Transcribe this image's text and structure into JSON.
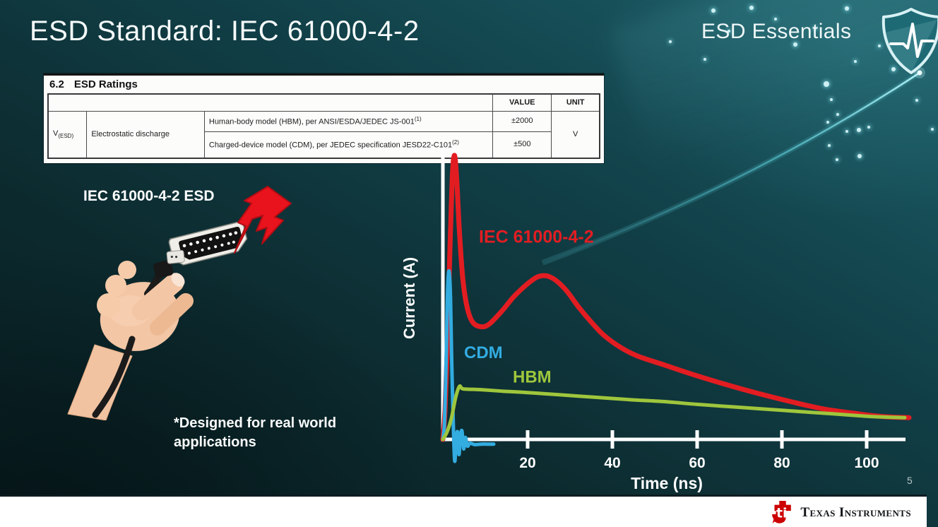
{
  "slide": {
    "title": "ESD Standard: IEC 61000-4-2",
    "program_name": "ESD Essentials",
    "page_number": "5",
    "footnote_line1": "*Designed for real world",
    "footnote_line2": "applications"
  },
  "ratings_table": {
    "section_number": "6.2",
    "section_title": "ESD Ratings",
    "value_header": "VALUE",
    "unit_header": "UNIT",
    "symbol": "V",
    "symbol_subscript": "(ESD)",
    "parameter": "Electrostatic discharge",
    "rows": [
      {
        "description": "Human-body model (HBM), per ANSI/ESDA/JEDEC JS-001",
        "superscript": "(1)",
        "value": "±2000"
      },
      {
        "description": "Charged-device model (CDM), per JEDEC specification JESD22-C101",
        "superscript": "(2)",
        "value": "±500"
      }
    ],
    "unit": "V"
  },
  "illustration": {
    "caption": "IEC 61000-4-2 ESD"
  },
  "chart_data": {
    "type": "line",
    "title": "",
    "xlabel": "Time (ns)",
    "ylabel": "Current (A)",
    "x_ticks": [
      20,
      40,
      60,
      80,
      100
    ],
    "xlim": [
      0,
      111
    ],
    "ylim": [
      -3,
      31
    ],
    "grid": false,
    "legend_position": "inline-labels",
    "series": [
      {
        "name": "IEC 61000-4-2",
        "color": "#e21d22",
        "width": 7,
        "label_size": 25,
        "label_at": [
          8.5,
          20.8
        ],
        "points": [
          [
            0,
            0
          ],
          [
            0.5,
            3
          ],
          [
            1,
            9
          ],
          [
            1.6,
            19
          ],
          [
            2.2,
            27.5
          ],
          [
            2.7,
            30
          ],
          [
            3.2,
            28
          ],
          [
            3.9,
            22
          ],
          [
            4.7,
            17
          ],
          [
            5.7,
            14
          ],
          [
            7,
            12.4
          ],
          [
            9,
            11.9
          ],
          [
            11,
            12.2
          ],
          [
            14,
            13.6
          ],
          [
            17,
            15.2
          ],
          [
            21,
            16.8
          ],
          [
            23.5,
            17.3
          ],
          [
            26,
            17
          ],
          [
            29,
            15.8
          ],
          [
            32,
            14
          ],
          [
            35,
            12.4
          ],
          [
            38,
            11
          ],
          [
            42,
            9.7
          ],
          [
            46,
            8.8
          ],
          [
            52,
            7.9
          ],
          [
            58,
            7
          ],
          [
            66,
            5.9
          ],
          [
            74,
            4.9
          ],
          [
            82,
            4
          ],
          [
            90,
            3.2
          ],
          [
            98,
            2.7
          ],
          [
            104,
            2.4
          ],
          [
            110,
            2.3
          ]
        ]
      },
      {
        "name": "CDM",
        "color": "#33ace0",
        "width": 5,
        "label_size": 24,
        "label_at": [
          5,
          8.6
        ],
        "points": [
          [
            0,
            0
          ],
          [
            0.4,
            2
          ],
          [
            0.8,
            9
          ],
          [
            1.1,
            15.5
          ],
          [
            1.45,
            17.8
          ],
          [
            1.8,
            15
          ],
          [
            2.1,
            8
          ],
          [
            2.5,
            1
          ],
          [
            2.8,
            -2.3
          ],
          [
            3.1,
            -0.4
          ],
          [
            3.45,
            0.8
          ],
          [
            3.8,
            -1.6
          ],
          [
            4.1,
            0.2
          ],
          [
            4.5,
            0.9
          ],
          [
            4.9,
            -1
          ],
          [
            5.3,
            0.2
          ],
          [
            5.8,
            -0.7
          ],
          [
            6.4,
            -0.4
          ],
          [
            7.5,
            -0.55
          ],
          [
            9,
            -0.5
          ],
          [
            10.5,
            -0.5
          ],
          [
            12,
            -0.5
          ]
        ]
      },
      {
        "name": "HBM",
        "color": "#9fc63c",
        "width": 5,
        "label_size": 24,
        "label_at": [
          16.5,
          6
        ],
        "points": [
          [
            0,
            0
          ],
          [
            1,
            0.8
          ],
          [
            2,
            2.2
          ],
          [
            3,
            4.4
          ],
          [
            3.9,
            5.6
          ],
          [
            4.6,
            5.35
          ],
          [
            6,
            5.3
          ],
          [
            9,
            5.25
          ],
          [
            14,
            5.1
          ],
          [
            20,
            4.95
          ],
          [
            28,
            4.7
          ],
          [
            36,
            4.45
          ],
          [
            44,
            4.2
          ],
          [
            52,
            4
          ],
          [
            60,
            3.7
          ],
          [
            68,
            3.45
          ],
          [
            76,
            3.2
          ],
          [
            84,
            2.95
          ],
          [
            92,
            2.7
          ],
          [
            100,
            2.45
          ],
          [
            105,
            2.35
          ],
          [
            109,
            2.3
          ]
        ]
      }
    ]
  },
  "footer": {
    "brand": "Texas Instruments"
  },
  "colors": {
    "iec_red": "#e21d22",
    "cdm_blue": "#33ace0",
    "hbm_green": "#9fc63c",
    "background_teal": "#123f46",
    "accent_cyan": "#5fd3de",
    "ti_red": "#cc0000",
    "bolt_red": "#e8131d"
  }
}
